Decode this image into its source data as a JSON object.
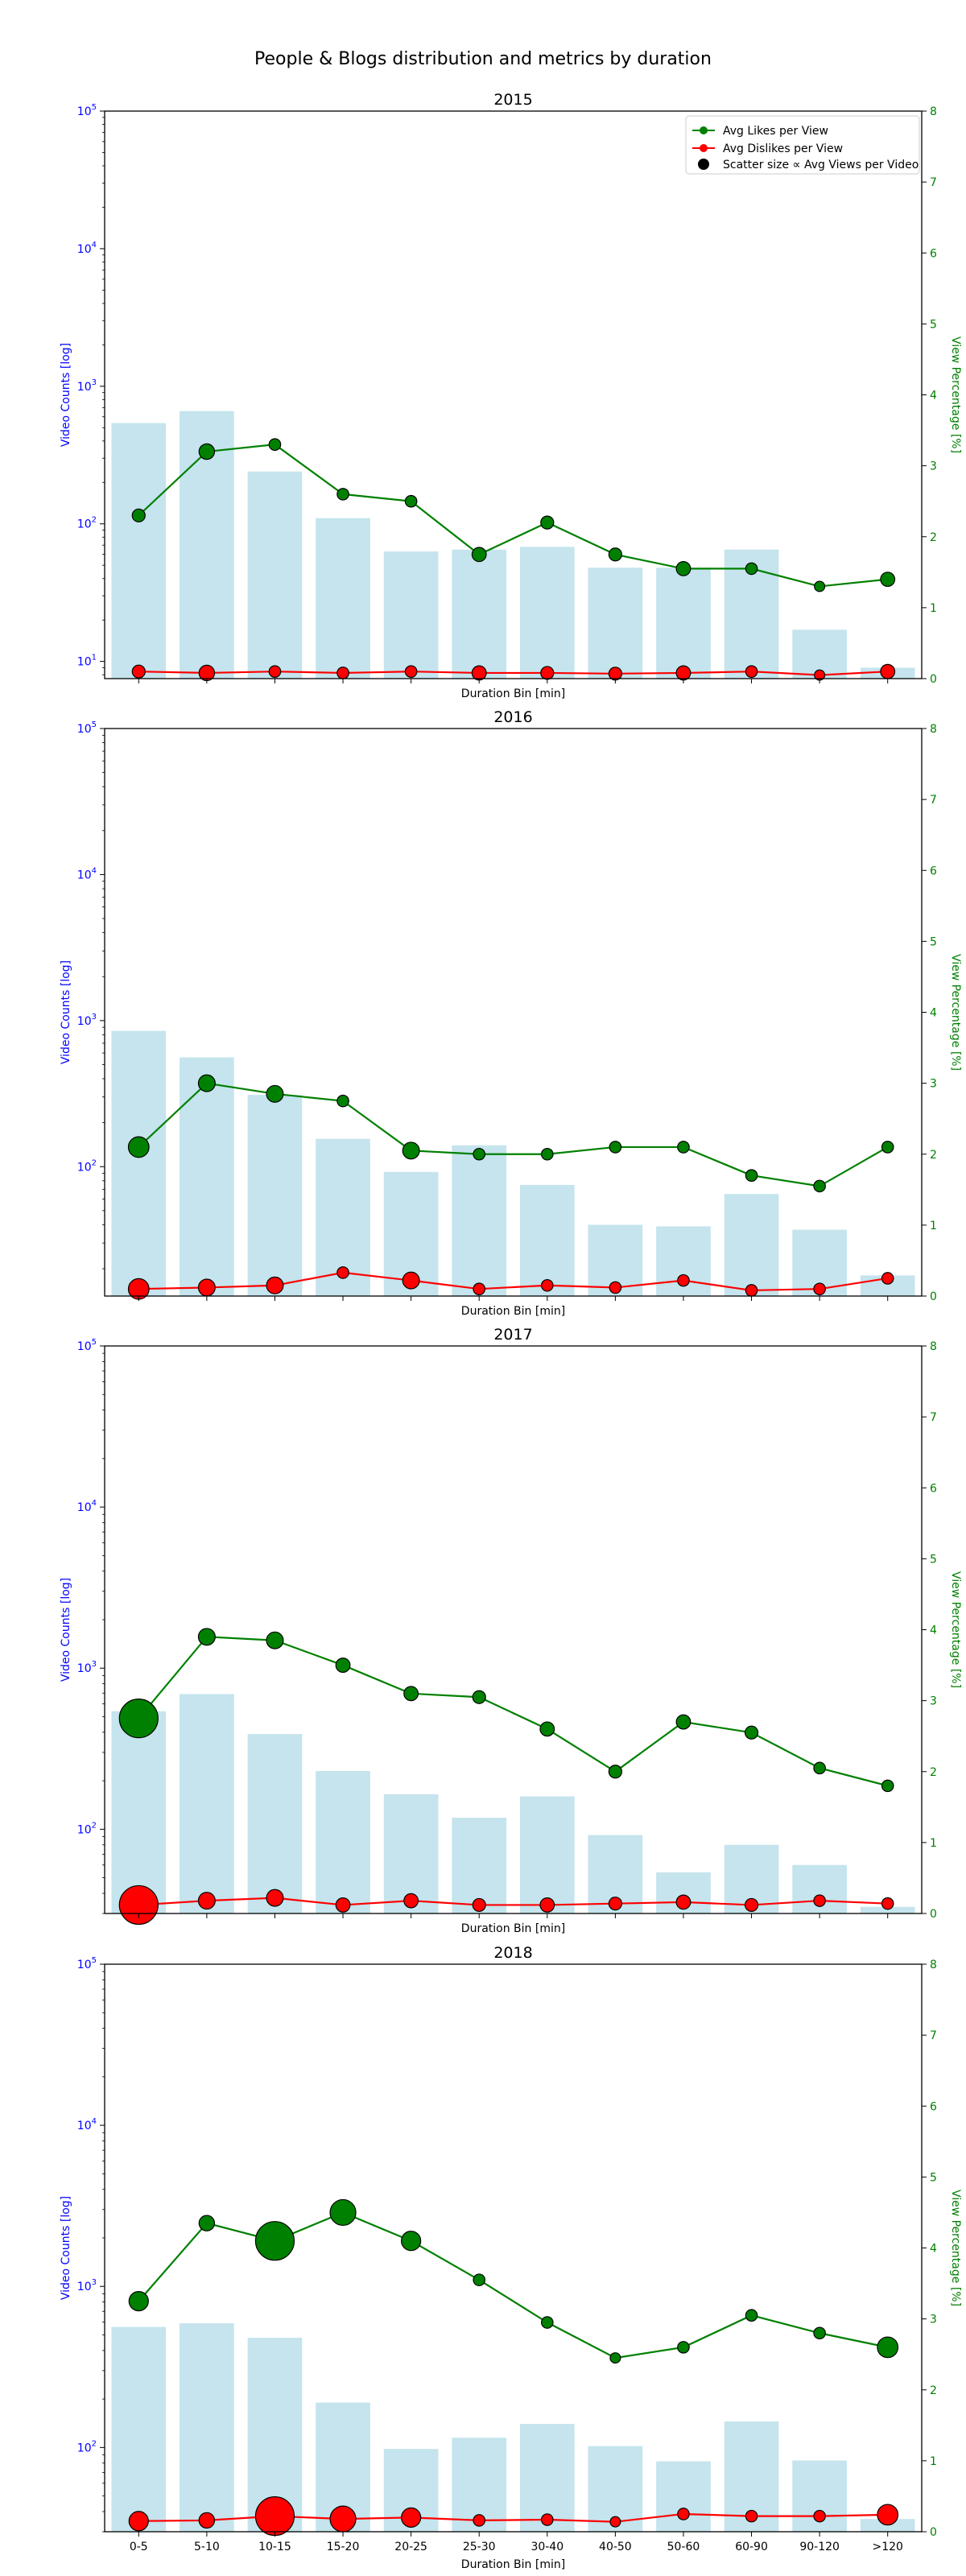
{
  "figure": {
    "suptitle": "People & Blogs distribution and metrics by duration"
  },
  "colors": {
    "bar": "#add8e6",
    "likes": "#008000",
    "dislikes": "#ff0000",
    "left_axis": "#0000ff",
    "right_axis": "#008000"
  },
  "chart_data": [
    {
      "type": "bar",
      "title": "2015",
      "xlabel": "Duration Bin [min]",
      "ylabel": "Video Counts [log]",
      "y2label": "View Percentage [%]",
      "yscale": "log",
      "ylim": [
        7.5,
        100000
      ],
      "y2lim": [
        0,
        8
      ],
      "legend": {
        "position": "top-right",
        "entries": [
          "Avg Likes per View",
          "Avg Dislikes per View",
          "Scatter size ∝ Avg Views per Video"
        ]
      },
      "categories": [
        "0-5",
        "5-10",
        "10-15",
        "15-20",
        "20-25",
        "25-30",
        "30-40",
        "40-50",
        "50-60",
        "60-90",
        "90-120",
        ">120"
      ],
      "series": [
        {
          "name": "Video Counts",
          "axis": "left",
          "kind": "bar",
          "values": [
            540,
            660,
            240,
            110,
            63,
            65,
            68,
            48,
            48,
            65,
            17,
            9
          ]
        },
        {
          "name": "Avg Likes per View",
          "axis": "right",
          "kind": "line",
          "values": [
            2.3,
            3.2,
            3.3,
            2.6,
            2.5,
            1.75,
            2.2,
            1.75,
            1.55,
            1.55,
            1.3,
            1.4
          ]
        },
        {
          "name": "Avg Dislikes per View",
          "axis": "right",
          "kind": "line",
          "values": [
            0.1,
            0.08,
            0.1,
            0.08,
            0.1,
            0.08,
            0.08,
            0.07,
            0.08,
            0.1,
            0.05,
            0.1
          ]
        }
      ],
      "avg_views_marker_size": [
        1,
        1.2,
        0.9,
        0.9,
        0.9,
        1.1,
        1,
        1,
        1.1,
        0.9,
        0.8,
        1.1
      ]
    },
    {
      "type": "bar",
      "title": "2016",
      "xlabel": "Duration Bin [min]",
      "ylabel": "Video Counts [log]",
      "y2label": "View Percentage [%]",
      "yscale": "log",
      "ylim": [
        13,
        100000
      ],
      "y2lim": [
        0,
        8
      ],
      "categories": [
        "0-5",
        "5-10",
        "10-15",
        "15-20",
        "20-25",
        "25-30",
        "30-40",
        "40-50",
        "50-60",
        "60-90",
        "90-120",
        ">120"
      ],
      "series": [
        {
          "name": "Video Counts",
          "axis": "left",
          "kind": "bar",
          "values": [
            850,
            560,
            310,
            155,
            92,
            140,
            75,
            40,
            39,
            65,
            37,
            18
          ]
        },
        {
          "name": "Avg Likes per View",
          "axis": "right",
          "kind": "line",
          "values": [
            2.1,
            3.0,
            2.85,
            2.75,
            2.05,
            2.0,
            2.0,
            2.1,
            2.1,
            1.7,
            1.55,
            2.1
          ]
        },
        {
          "name": "Avg Dislikes per View",
          "axis": "right",
          "kind": "line",
          "values": [
            0.1,
            0.12,
            0.15,
            0.33,
            0.22,
            0.1,
            0.15,
            0.12,
            0.22,
            0.08,
            0.1,
            0.25
          ]
        }
      ],
      "avg_views_marker_size": [
        1.6,
        1.3,
        1.3,
        0.9,
        1.3,
        0.9,
        0.9,
        0.9,
        0.9,
        0.9,
        0.9,
        0.9
      ]
    },
    {
      "type": "bar",
      "title": "2017",
      "xlabel": "Duration Bin [min]",
      "ylabel": "Video Counts [log]",
      "y2label": "View Percentage [%]",
      "yscale": "log",
      "ylim": [
        30,
        100000
      ],
      "y2lim": [
        0,
        8
      ],
      "categories": [
        "0-5",
        "5-10",
        "10-15",
        "15-20",
        "20-25",
        "25-30",
        "30-40",
        "40-50",
        "50-60",
        "60-90",
        "90-120",
        ">120"
      ],
      "series": [
        {
          "name": "Video Counts",
          "axis": "left",
          "kind": "bar",
          "values": [
            540,
            690,
            390,
            230,
            165,
            118,
            160,
            92,
            54,
            80,
            60,
            33
          ]
        },
        {
          "name": "Avg Likes per View",
          "axis": "right",
          "kind": "line",
          "values": [
            2.75,
            3.9,
            3.85,
            3.5,
            3.1,
            3.05,
            2.6,
            2.0,
            2.7,
            2.55,
            2.05,
            1.8
          ]
        },
        {
          "name": "Avg Dislikes per View",
          "axis": "right",
          "kind": "line",
          "values": [
            0.12,
            0.18,
            0.22,
            0.12,
            0.18,
            0.12,
            0.12,
            0.14,
            0.16,
            0.12,
            0.18,
            0.14
          ]
        }
      ],
      "avg_views_marker_size": [
        3,
        1.3,
        1.3,
        1.1,
        1.1,
        1,
        1.1,
        1,
        1.1,
        1,
        0.9,
        0.9
      ]
    },
    {
      "type": "bar",
      "title": "2018",
      "xlabel": "Duration Bin [min]",
      "ylabel": "Video Counts [log]",
      "y2label": "View Percentage [%]",
      "yscale": "log",
      "ylim": [
        30,
        100000
      ],
      "y2lim": [
        0,
        8
      ],
      "categories": [
        "0-5",
        "5-10",
        "10-15",
        "15-20",
        "20-25",
        "25-30",
        "30-40",
        "40-50",
        "50-60",
        "60-90",
        "90-120",
        ">120"
      ],
      "series": [
        {
          "name": "Video Counts",
          "axis": "left",
          "kind": "bar",
          "values": [
            560,
            590,
            480,
            190,
            98,
            115,
            140,
            102,
            82,
            145,
            83,
            36
          ]
        },
        {
          "name": "Avg Likes per View",
          "axis": "right",
          "kind": "line",
          "values": [
            3.25,
            4.35,
            4.1,
            4.5,
            4.1,
            3.55,
            2.95,
            2.45,
            2.6,
            3.05,
            2.8,
            2.6
          ]
        },
        {
          "name": "Avg Dislikes per View",
          "axis": "right",
          "kind": "line",
          "values": [
            0.15,
            0.16,
            0.22,
            0.18,
            0.2,
            0.16,
            0.17,
            0.14,
            0.25,
            0.22,
            0.22,
            0.24
          ]
        }
      ],
      "avg_views_marker_size": [
        1.5,
        1.2,
        3,
        2,
        1.5,
        0.9,
        0.9,
        0.8,
        0.9,
        0.9,
        0.9,
        1.6
      ]
    }
  ]
}
